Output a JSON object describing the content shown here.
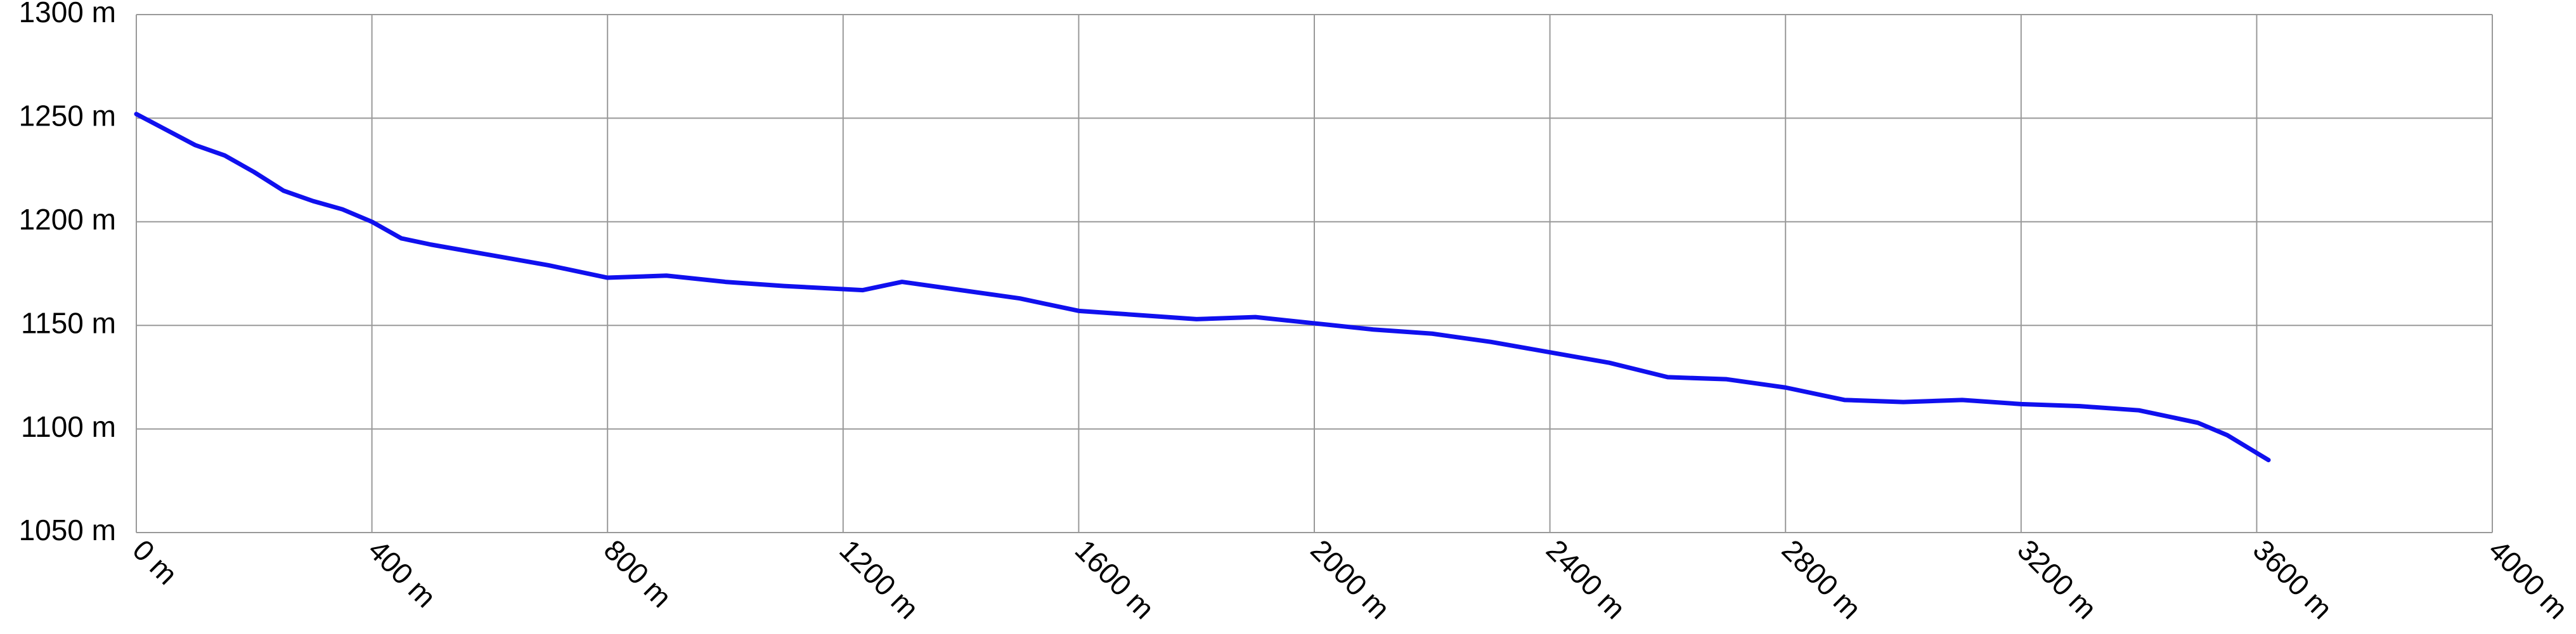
{
  "chart_data": {
    "type": "line",
    "x": [
      0,
      100,
      150,
      200,
      250,
      300,
      350,
      400,
      450,
      500,
      600,
      700,
      800,
      900,
      1000,
      1100,
      1233,
      1300,
      1400,
      1500,
      1600,
      1700,
      1800,
      1900,
      2000,
      2100,
      2200,
      2300,
      2400,
      2500,
      2600,
      2700,
      2800,
      2900,
      3000,
      3100,
      3200,
      3300,
      3400,
      3500,
      3550,
      3620
    ],
    "series": [
      {
        "color": "#1010ee",
        "values": [
          1252,
          1237,
          1232,
          1224,
          1215,
          1210,
          1206,
          1200,
          1192,
          1189,
          1184,
          1179,
          1173,
          1174,
          1171,
          1169,
          1167,
          1171,
          1167,
          1163,
          1157,
          1155,
          1153,
          1154,
          1151,
          1148,
          1146,
          1142,
          1137,
          1132,
          1125,
          1124,
          1120,
          1114,
          1113,
          1114,
          1112,
          1111,
          1109,
          1103,
          1097,
          1085
        ]
      }
    ],
    "xlim": [
      0,
      4000
    ],
    "xticks": [
      {
        "value": 0,
        "label": "0 m"
      },
      {
        "value": 400,
        "label": "400 m"
      },
      {
        "value": 800,
        "label": "800 m"
      },
      {
        "value": 1200,
        "label": "1200 m"
      },
      {
        "value": 1600,
        "label": "1600 m"
      },
      {
        "value": 2000,
        "label": "2000 m"
      },
      {
        "value": 2400,
        "label": "2400 m"
      },
      {
        "value": 2800,
        "label": "2800 m"
      },
      {
        "value": 3200,
        "label": "3200 m"
      },
      {
        "value": 3600,
        "label": "3600 m"
      },
      {
        "value": 4000,
        "label": "4000 m"
      }
    ],
    "ylim": [
      1050,
      1300
    ],
    "yticks": [
      {
        "value": 1050,
        "label": "1050 m"
      },
      {
        "value": 1100,
        "label": "1100 m"
      },
      {
        "value": 1150,
        "label": "1150 m"
      },
      {
        "value": 1200,
        "label": "1200 m"
      },
      {
        "value": 1250,
        "label": "1250 m"
      },
      {
        "value": 1300,
        "label": "1300 m"
      }
    ],
    "grid": true
  }
}
